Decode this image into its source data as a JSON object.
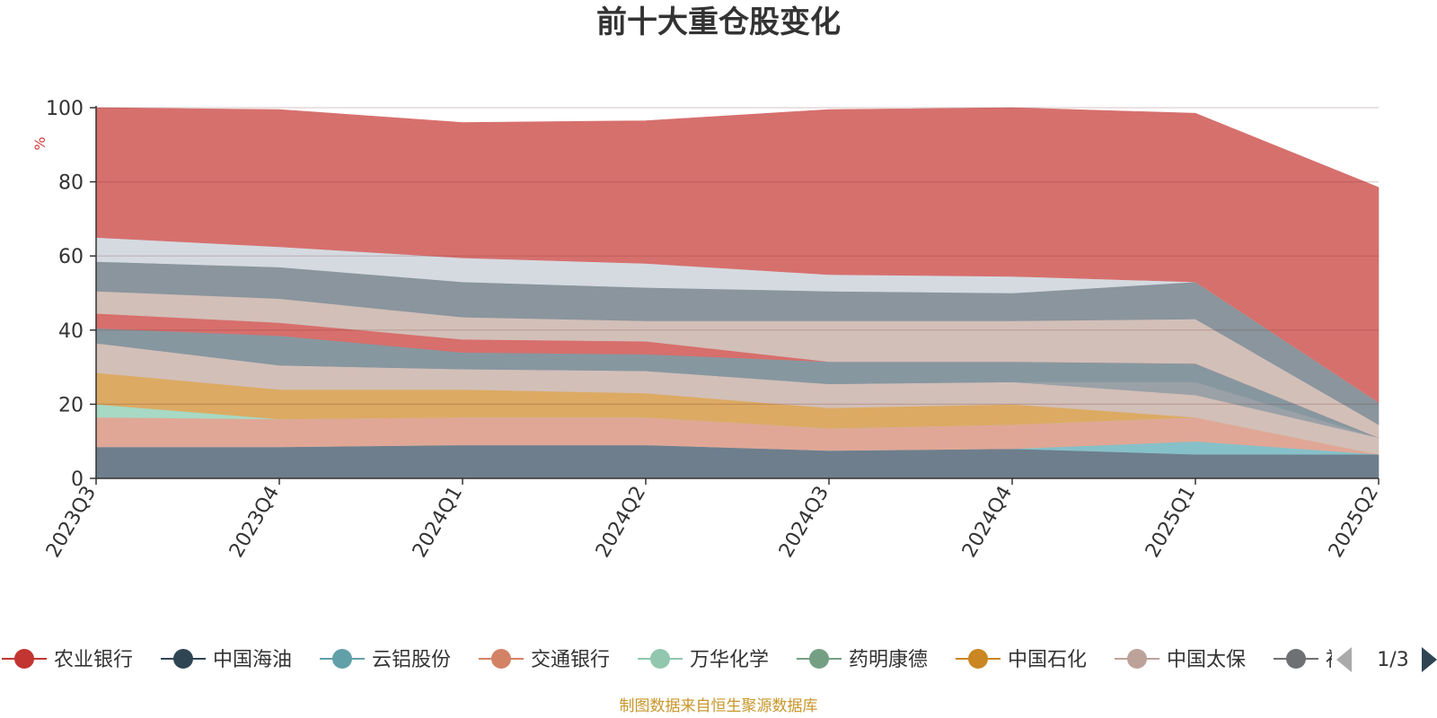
{
  "chart_data": {
    "type": "area",
    "stacked": true,
    "title": "前十大重仓股变化",
    "ylabel": "%",
    "ylim": [
      0,
      100
    ],
    "yticks": [
      0,
      20,
      40,
      60,
      80,
      100
    ],
    "grid": true,
    "categories": [
      "2023Q3",
      "2023Q4",
      "2024Q1",
      "2024Q2",
      "2024Q3",
      "2024Q4",
      "2025Q1",
      "2025Q2"
    ],
    "bands": [
      {
        "color": "#6e7e8c",
        "values": [
          8.5,
          8.5,
          9.0,
          9.0,
          7.5,
          8.0,
          6.5,
          6.5
        ]
      },
      {
        "color": "#86c0c8",
        "values": [
          0.0,
          0.0,
          0.0,
          0.0,
          0.0,
          0.0,
          3.5,
          0.0
        ]
      },
      {
        "color": "#e0a796",
        "values": [
          8.0,
          7.5,
          7.5,
          7.5,
          6.0,
          6.5,
          6.5,
          0.0
        ]
      },
      {
        "color": "#a7d9c4",
        "values": [
          3.5,
          0.0,
          0.0,
          0.0,
          0.0,
          0.0,
          0.0,
          0.0
        ]
      },
      {
        "color": "#dcaa63",
        "values": [
          8.5,
          8.0,
          7.5,
          6.5,
          5.5,
          5.5,
          0.0,
          0.0
        ]
      },
      {
        "color": "#d2bfb8",
        "values": [
          8.0,
          6.5,
          5.5,
          6.0,
          6.5,
          6.0,
          6.0,
          4.5
        ]
      },
      {
        "color": "#9aa1a7",
        "values": [
          0.0,
          0.0,
          0.0,
          0.0,
          0.0,
          0.0,
          3.5,
          0.0
        ]
      },
      {
        "color": "#8797a0",
        "values": [
          4.0,
          8.0,
          4.5,
          4.5,
          6.0,
          5.5,
          5.0,
          0.0
        ]
      },
      {
        "color": "#d76f6c",
        "values": [
          4.0,
          3.5,
          3.5,
          3.5,
          0.0,
          0.0,
          0.0,
          0.0
        ]
      },
      {
        "color": "#d2bfb8",
        "values": [
          6.0,
          6.5,
          6.0,
          5.5,
          11.0,
          11.0,
          12.0,
          3.5
        ]
      },
      {
        "color": "#8a959d",
        "values": [
          8.0,
          8.5,
          9.5,
          9.0,
          8.0,
          7.5,
          10.0,
          6.0
        ]
      },
      {
        "color": "#d5dae1",
        "values": [
          6.5,
          5.5,
          6.5,
          6.5,
          4.5,
          4.5,
          0.0,
          0.0
        ]
      },
      {
        "color": "#d6706d",
        "values": [
          35.0,
          37.0,
          36.5,
          38.5,
          44.5,
          45.5,
          45.5,
          58.0
        ]
      }
    ],
    "legend": {
      "position": "bottom",
      "page": "1/3",
      "items": [
        {
          "name": "农业银行",
          "color": "#c23531"
        },
        {
          "name": "中国海油",
          "color": "#2f4554"
        },
        {
          "name": "云铝股份",
          "color": "#61a0a8"
        },
        {
          "name": "交通银行",
          "color": "#d48265"
        },
        {
          "name": "万华化学",
          "color": "#91c7ae"
        },
        {
          "name": "药明康德",
          "color": "#749f83"
        },
        {
          "name": "中国石化",
          "color": "#ca8622"
        },
        {
          "name": "中国太保",
          "color": "#bda29a"
        },
        {
          "name": "衫",
          "color": "#6e7074"
        }
      ]
    }
  },
  "source_note": "制图数据来自恒生聚源数据库"
}
